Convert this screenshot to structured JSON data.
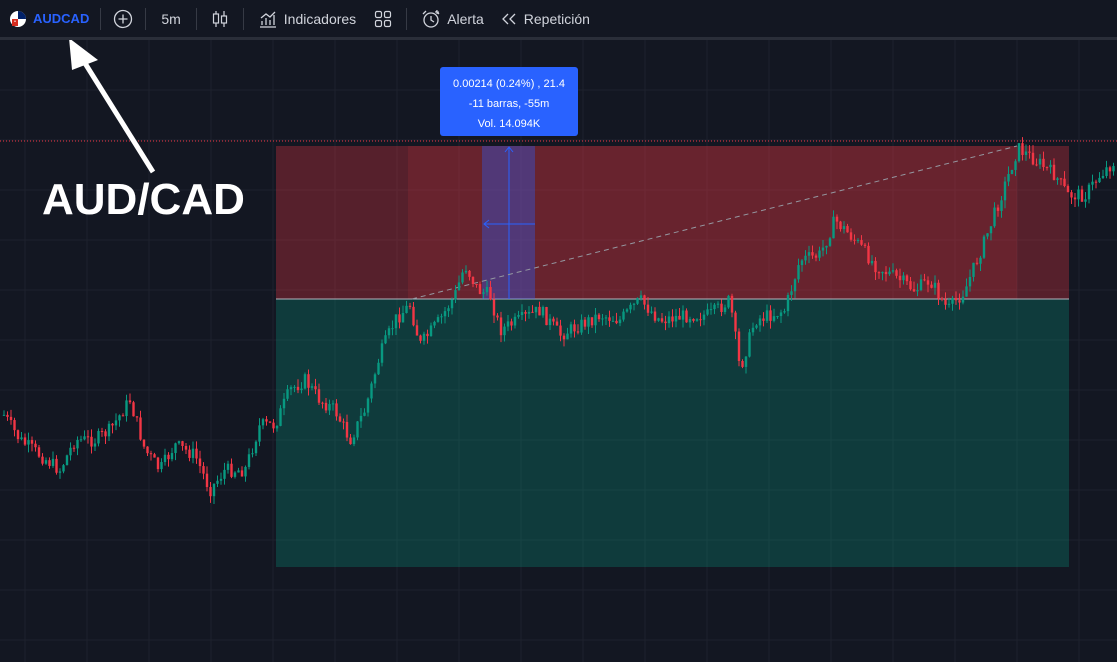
{
  "toolbar": {
    "symbol": "AUDCAD",
    "add_symbol_icon": "plus-circle-icon",
    "interval": "5m",
    "chart_type_icon": "candles-icon",
    "indicators_label": "Indicadores",
    "layouts_icon": "grid-icon",
    "alert_label": "Alerta",
    "replay_label": "Repetición"
  },
  "measure_tooltip": {
    "line1": "0.00214 (0.24%) , 21.4",
    "line2": "-11 barras, -55m",
    "line3": "Vol. 14.094K"
  },
  "annotation": {
    "text": "AUD/CAD"
  },
  "colors": {
    "background": "#131722",
    "up": "#089981",
    "down": "#f23645",
    "accent": "#2962ff",
    "stop_zone": "#f23645",
    "target_zone": "#089981"
  }
}
